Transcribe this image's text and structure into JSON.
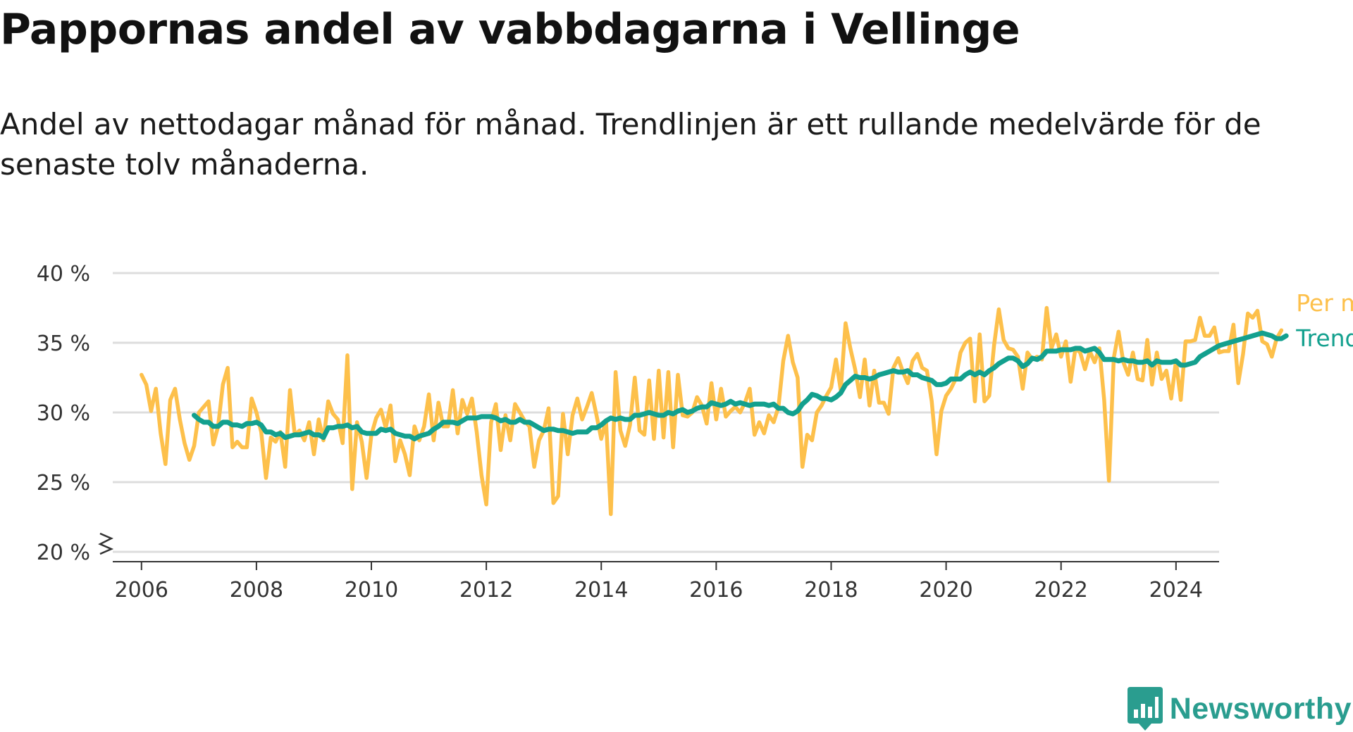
{
  "title": "Pappornas andel av vabbdagarna i Vellinge",
  "subtitle": "Andel av nettodagar månad för månad. Trendlinjen är ett rullande medelvärde för de senaste tolv månaderna.",
  "brand": {
    "name": "Newsworthy",
    "icon": "newsworthy-bar-chart-icon"
  },
  "colors": {
    "monthly": "#fdc04b",
    "trend": "#13a08e",
    "grid": "#dddddd",
    "axis": "#333333",
    "brand": "#2a9d8f"
  },
  "chart_data": {
    "type": "line",
    "title": "Pappornas andel av vabbdagarna i Vellinge",
    "xlabel": "",
    "ylabel": "",
    "xlim": [
      2005.5,
      2024.75
    ],
    "ylim": [
      20,
      40
    ],
    "x_ticks": [
      2006,
      2008,
      2010,
      2012,
      2014,
      2016,
      2018,
      2020,
      2022,
      2024
    ],
    "y_ticks": [
      20,
      25,
      30,
      35,
      40
    ],
    "y_tick_labels": [
      "20 %",
      "25 %",
      "30 %",
      "35 %",
      "40 %"
    ],
    "y_axis_break": true,
    "grid": "horizontal",
    "x_start": "2006-01",
    "x_step": "month",
    "series": [
      {
        "name": "Per månad",
        "color": "#fdc04b",
        "values": [
          32.7,
          32.0,
          30.1,
          31.7,
          28.5,
          26.3,
          30.9,
          31.7,
          29.5,
          27.8,
          26.6,
          27.6,
          30.0,
          30.4,
          30.8,
          27.7,
          29.0,
          32.0,
          33.2,
          27.5,
          27.9,
          27.5,
          27.5,
          31.0,
          30.0,
          28.6,
          25.3,
          28.2,
          27.9,
          28.6,
          26.1,
          31.6,
          28.4,
          28.7,
          28.0,
          29.3,
          27.0,
          29.5,
          28.0,
          30.8,
          29.9,
          29.5,
          27.8,
          34.1,
          24.5,
          29.3,
          27.9,
          25.3,
          28.4,
          29.6,
          30.2,
          28.9,
          30.5,
          26.5,
          28.0,
          27.0,
          25.5,
          29.0,
          28.0,
          29.0,
          31.3,
          28.0,
          30.7,
          29.0,
          29.0,
          31.6,
          28.5,
          30.9,
          29.9,
          31.0,
          28.6,
          25.5,
          23.4,
          29.3,
          30.6,
          27.3,
          29.8,
          28.0,
          30.6,
          30.0,
          29.4,
          29.0,
          26.1,
          28.0,
          28.7,
          30.3,
          23.5,
          24.0,
          29.9,
          27.0,
          29.8,
          31.0,
          29.5,
          30.4,
          31.4,
          29.8,
          28.1,
          29.4,
          22.7,
          32.9,
          28.7,
          27.6,
          29.1,
          32.5,
          28.7,
          28.4,
          32.3,
          28.1,
          33.0,
          28.2,
          32.9,
          27.5,
          32.7,
          29.8,
          29.7,
          30.0,
          31.1,
          30.5,
          29.2,
          32.1,
          29.5,
          31.7,
          29.7,
          30.1,
          30.4,
          30.0,
          30.7,
          31.7,
          28.4,
          29.3,
          28.5,
          29.8,
          29.3,
          30.4,
          33.7,
          35.5,
          33.6,
          32.5,
          26.1,
          28.4,
          28.0,
          30.0,
          30.5,
          31.2,
          31.8,
          33.8,
          31.6,
          36.4,
          34.6,
          33.1,
          31.1,
          33.8,
          30.5,
          33.0,
          30.7,
          30.7,
          29.9,
          33.2,
          33.9,
          32.9,
          32.1,
          33.7,
          34.2,
          33.2,
          33.0,
          30.8,
          27.0,
          30.1,
          31.2,
          31.7,
          32.4,
          34.3,
          35.0,
          35.3,
          30.8,
          35.6,
          30.8,
          31.2,
          34.8,
          37.4,
          35.2,
          34.6,
          34.5,
          34.0,
          31.7,
          34.3,
          33.8,
          34.0,
          33.8,
          37.5,
          34.6,
          35.6,
          34.0,
          35.1,
          32.2,
          34.6,
          34.3,
          33.1,
          34.4,
          33.6,
          34.6,
          30.9,
          25.1,
          33.9,
          35.8,
          33.6,
          32.7,
          34.3,
          32.4,
          32.3,
          35.2,
          32.0,
          34.3,
          32.4,
          33.0,
          31.0,
          33.7,
          30.9,
          35.1,
          35.1,
          35.2,
          36.8,
          35.5,
          35.5,
          36.1,
          34.3,
          34.4,
          34.4,
          36.3,
          32.1,
          34.2,
          37.1,
          36.8,
          37.3,
          35.1,
          34.9,
          34.0,
          35.3,
          35.9
        ]
      },
      {
        "name": "Trend",
        "color": "#13a08e",
        "values": [
          null,
          null,
          null,
          null,
          null,
          null,
          null,
          null,
          null,
          null,
          null,
          29.8,
          29.5,
          29.3,
          29.3,
          29.0,
          29.0,
          29.3,
          29.3,
          29.1,
          29.1,
          29.0,
          29.2,
          29.2,
          29.3,
          29.1,
          28.6,
          28.6,
          28.4,
          28.5,
          28.2,
          28.3,
          28.4,
          28.4,
          28.5,
          28.6,
          28.4,
          28.4,
          28.2,
          28.9,
          28.9,
          29.0,
          29.0,
          29.1,
          28.9,
          29.0,
          28.6,
          28.5,
          28.5,
          28.5,
          28.8,
          28.7,
          28.8,
          28.5,
          28.4,
          28.3,
          28.3,
          28.1,
          28.3,
          28.4,
          28.5,
          28.8,
          29.0,
          29.3,
          29.3,
          29.3,
          29.2,
          29.4,
          29.6,
          29.6,
          29.6,
          29.7,
          29.7,
          29.7,
          29.6,
          29.4,
          29.5,
          29.3,
          29.3,
          29.5,
          29.3,
          29.3,
          29.1,
          28.9,
          28.7,
          28.8,
          28.8,
          28.7,
          28.7,
          28.6,
          28.5,
          28.6,
          28.6,
          28.6,
          28.9,
          28.9,
          29.1,
          29.4,
          29.6,
          29.5,
          29.6,
          29.5,
          29.5,
          29.8,
          29.8,
          29.9,
          30.0,
          29.9,
          29.8,
          29.8,
          30.0,
          29.9,
          30.1,
          30.2,
          30.0,
          30.1,
          30.3,
          30.4,
          30.4,
          30.7,
          30.6,
          30.5,
          30.6,
          30.8,
          30.6,
          30.7,
          30.6,
          30.5,
          30.6,
          30.6,
          30.6,
          30.5,
          30.6,
          30.3,
          30.3,
          30.0,
          29.9,
          30.1,
          30.6,
          30.9,
          31.3,
          31.2,
          31.0,
          31.0,
          30.9,
          31.1,
          31.4,
          32.0,
          32.3,
          32.6,
          32.5,
          32.5,
          32.4,
          32.5,
          32.7,
          32.8,
          32.9,
          33.0,
          32.9,
          32.9,
          33.0,
          32.7,
          32.7,
          32.5,
          32.4,
          32.3,
          32.0,
          32.0,
          32.1,
          32.4,
          32.4,
          32.4,
          32.7,
          32.9,
          32.7,
          32.9,
          32.7,
          33.0,
          33.2,
          33.5,
          33.7,
          33.9,
          33.9,
          33.7,
          33.3,
          33.5,
          33.9,
          33.8,
          34.0,
          34.4,
          34.4,
          34.4,
          34.5,
          34.5,
          34.5,
          34.6,
          34.6,
          34.4,
          34.5,
          34.6,
          34.3,
          33.8,
          33.8,
          33.8,
          33.7,
          33.8,
          33.7,
          33.7,
          33.6,
          33.6,
          33.7,
          33.4,
          33.7,
          33.6,
          33.6,
          33.6,
          33.7,
          33.4,
          33.4,
          33.5,
          33.6,
          34.0,
          34.2,
          34.4,
          34.6,
          34.8,
          34.9,
          35.0,
          35.1,
          35.2,
          35.3,
          35.4,
          35.5,
          35.6,
          35.7,
          35.6,
          35.5,
          35.3,
          35.3,
          35.5
        ]
      }
    ],
    "legend": [
      {
        "label": "Per månad",
        "placement": "right-end-of-line"
      },
      {
        "label": "Trend",
        "placement": "right-end-of-line"
      }
    ]
  }
}
